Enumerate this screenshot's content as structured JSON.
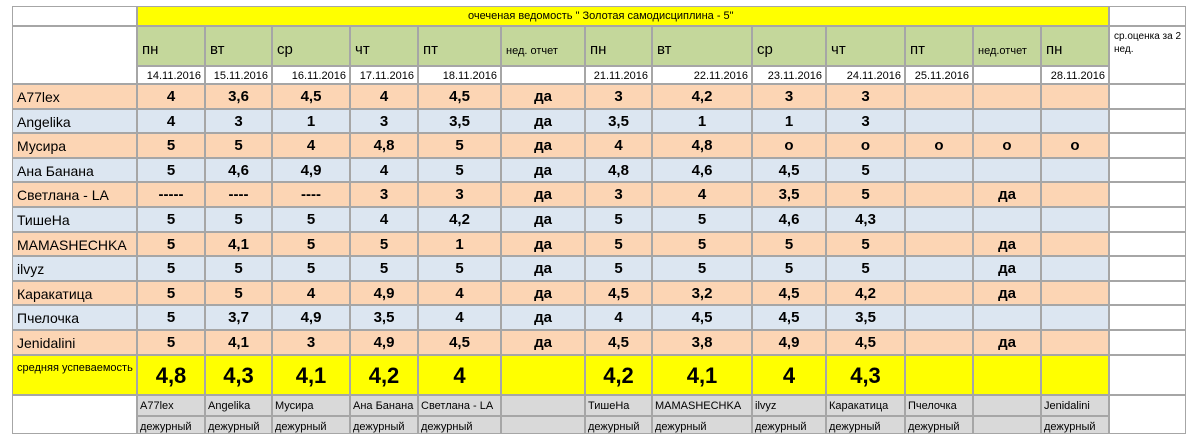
{
  "title": "очеченая ведомость  \" Золотая самодисциплина - 5\"",
  "summary_header": "ср.оценка за 2 нед.",
  "days": [
    "пн",
    "вт",
    "ср",
    "чт",
    "пт",
    "нед. отчет",
    "пн",
    "вт",
    "ср",
    "чт",
    "пт",
    "нед.отчет",
    "пн"
  ],
  "dates": [
    "14.11.2016",
    "15.11.2016",
    "16.11.2016",
    "17.11.2016",
    "18.11.2016",
    "",
    "21.11.2016",
    "22.11.2016",
    "23.11.2016",
    "24.11.2016",
    "25.11.2016",
    "",
    "28.11.2016"
  ],
  "rows": [
    {
      "name": "A77lex",
      "vals": [
        "4",
        "3,6",
        "4,5",
        "4",
        "4,5",
        "да",
        "3",
        "4,2",
        "3",
        "3",
        "",
        "",
        ""
      ]
    },
    {
      "name": "Angelika",
      "vals": [
        "4",
        "3",
        "1",
        "3",
        "3,5",
        "да",
        "3,5",
        "1",
        "1",
        "3",
        "",
        "",
        ""
      ]
    },
    {
      "name": "Мусира",
      "vals": [
        "5",
        "5",
        "4",
        "4,8",
        "5",
        "да",
        "4",
        "4,8",
        "о",
        "о",
        "о",
        "о",
        "о"
      ]
    },
    {
      "name": "Ана Банана",
      "vals": [
        "5",
        "4,6",
        "4,9",
        "4",
        "5",
        "да",
        "4,8",
        "4,6",
        "4,5",
        "5",
        "",
        "",
        ""
      ]
    },
    {
      "name": "Светлана - LA",
      "vals": [
        "-----",
        "----",
        "----",
        "3",
        "3",
        "да",
        "3",
        "4",
        "3,5",
        "5",
        "",
        "да",
        ""
      ]
    },
    {
      "name": "ТишеНа",
      "vals": [
        "5",
        "5",
        "5",
        "4",
        "4,2",
        "да",
        "5",
        "5",
        "4,6",
        "4,3",
        "",
        "",
        ""
      ]
    },
    {
      "name": "MAMASHECHKA",
      "vals": [
        "5",
        "4,1",
        "5",
        "5",
        "1",
        "да",
        "5",
        "5",
        "5",
        "5",
        "",
        "да",
        ""
      ]
    },
    {
      "name": "ilvyz",
      "vals": [
        "5",
        "5",
        "5",
        "5",
        "5",
        "да",
        "5",
        "5",
        "5",
        "5",
        "",
        "да",
        ""
      ]
    },
    {
      "name": "Каракатица",
      "vals": [
        "5",
        "5",
        "4",
        "4,9",
        "4",
        "да",
        "4,5",
        "3,2",
        "4,5",
        "4,2",
        "",
        "да",
        ""
      ]
    },
    {
      "name": "Пчелочка",
      "vals": [
        "5",
        "3,7",
        "4,9",
        "3,5",
        "4",
        "да",
        "4",
        "4,5",
        "4,5",
        "3,5",
        "",
        "",
        ""
      ]
    },
    {
      "name": "Jenidalini",
      "vals": [
        "5",
        "4,1",
        "3",
        "4,9",
        "4,5",
        "да",
        "4,5",
        "3,8",
        "4,9",
        "4,5",
        "",
        "да",
        ""
      ]
    }
  ],
  "average": {
    "label": "средняя успеваемость",
    "vals": [
      "4,8",
      "4,3",
      "4,1",
      "4,2",
      "4",
      "",
      "4,2",
      "4,1",
      "4",
      "4,3",
      "",
      "",
      ""
    ]
  },
  "duty_names": [
    "A77lex",
    "Angelika",
    "Мусира",
    "Ана Банана",
    "Светлана - LA",
    "",
    "ТишеНа",
    "MAMASHECHKA",
    "ilvyz",
    "Каракатица",
    "Пчелочка",
    "",
    "Jenidalini"
  ],
  "duty_label": "дежурный"
}
